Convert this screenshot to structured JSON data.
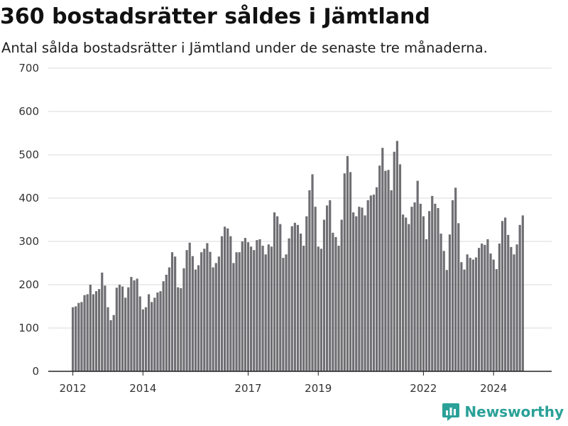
{
  "header": {
    "title": "360 bostadsrätter såldes i Jämtland",
    "subtitle": "Antal sålda bostadsrätter i Jämtland under de senaste tre månaderna."
  },
  "brand": {
    "name": "Newsworthy",
    "icon": "newsworthy-logo-icon",
    "color": "#2aa198"
  },
  "chart_data": {
    "type": "bar",
    "title": "360 bostadsrätter såldes i Jämtland",
    "subtitle": "Antal sålda bostadsrätter i Jämtland under de senaste tre månaderna.",
    "xlabel": "",
    "ylabel": "",
    "ylim": [
      0,
      700
    ],
    "yticks": [
      0,
      100,
      200,
      300,
      400,
      500,
      600,
      700
    ],
    "xticks": [
      {
        "label": "2012",
        "index": 0
      },
      {
        "label": "2014",
        "index": 24
      },
      {
        "label": "2017",
        "index": 60
      },
      {
        "label": "2019",
        "index": 84
      },
      {
        "label": "2022",
        "index": 120
      },
      {
        "label": "2024",
        "index": 144
      }
    ],
    "grid": true,
    "bar_color": "#6e6e73",
    "highlight_color": "#2aa198",
    "highlight_index": 155,
    "annotation": "360",
    "series": [
      {
        "values": [
          148,
          150,
          158,
          160,
          176,
          178,
          200,
          178,
          185,
          190,
          228,
          198,
          148,
          118,
          130,
          193,
          200,
          196,
          170,
          194,
          218,
          210,
          214,
          173,
          143,
          148,
          178,
          160,
          170,
          182,
          185,
          208,
          223,
          240,
          275,
          265,
          194,
          192,
          238,
          280,
          297,
          266,
          235,
          245,
          275,
          283,
          296,
          276,
          240,
          250,
          265,
          312,
          334,
          330,
          312,
          250,
          275,
          275,
          300,
          308,
          298,
          288,
          280,
          303,
          305,
          290,
          270,
          293,
          288,
          367,
          358,
          340,
          262,
          270,
          307,
          335,
          343,
          338,
          318,
          290,
          358,
          418,
          455,
          380,
          288,
          283,
          350,
          383,
          395,
          320,
          310,
          290,
          350,
          457,
          497,
          460,
          367,
          358,
          380,
          378,
          360,
          395,
          406,
          408,
          425,
          475,
          516,
          463,
          465,
          418,
          507,
          532,
          478,
          362,
          355,
          340,
          380,
          390,
          440,
          387,
          358,
          305,
          370,
          405,
          387,
          377,
          318,
          278,
          234,
          316,
          395,
          424,
          342,
          252,
          235,
          270,
          262,
          258,
          263,
          285,
          295,
          292,
          305,
          272,
          258,
          236,
          295,
          347,
          355,
          315,
          287,
          270,
          293,
          338,
          360
        ]
      }
    ]
  }
}
